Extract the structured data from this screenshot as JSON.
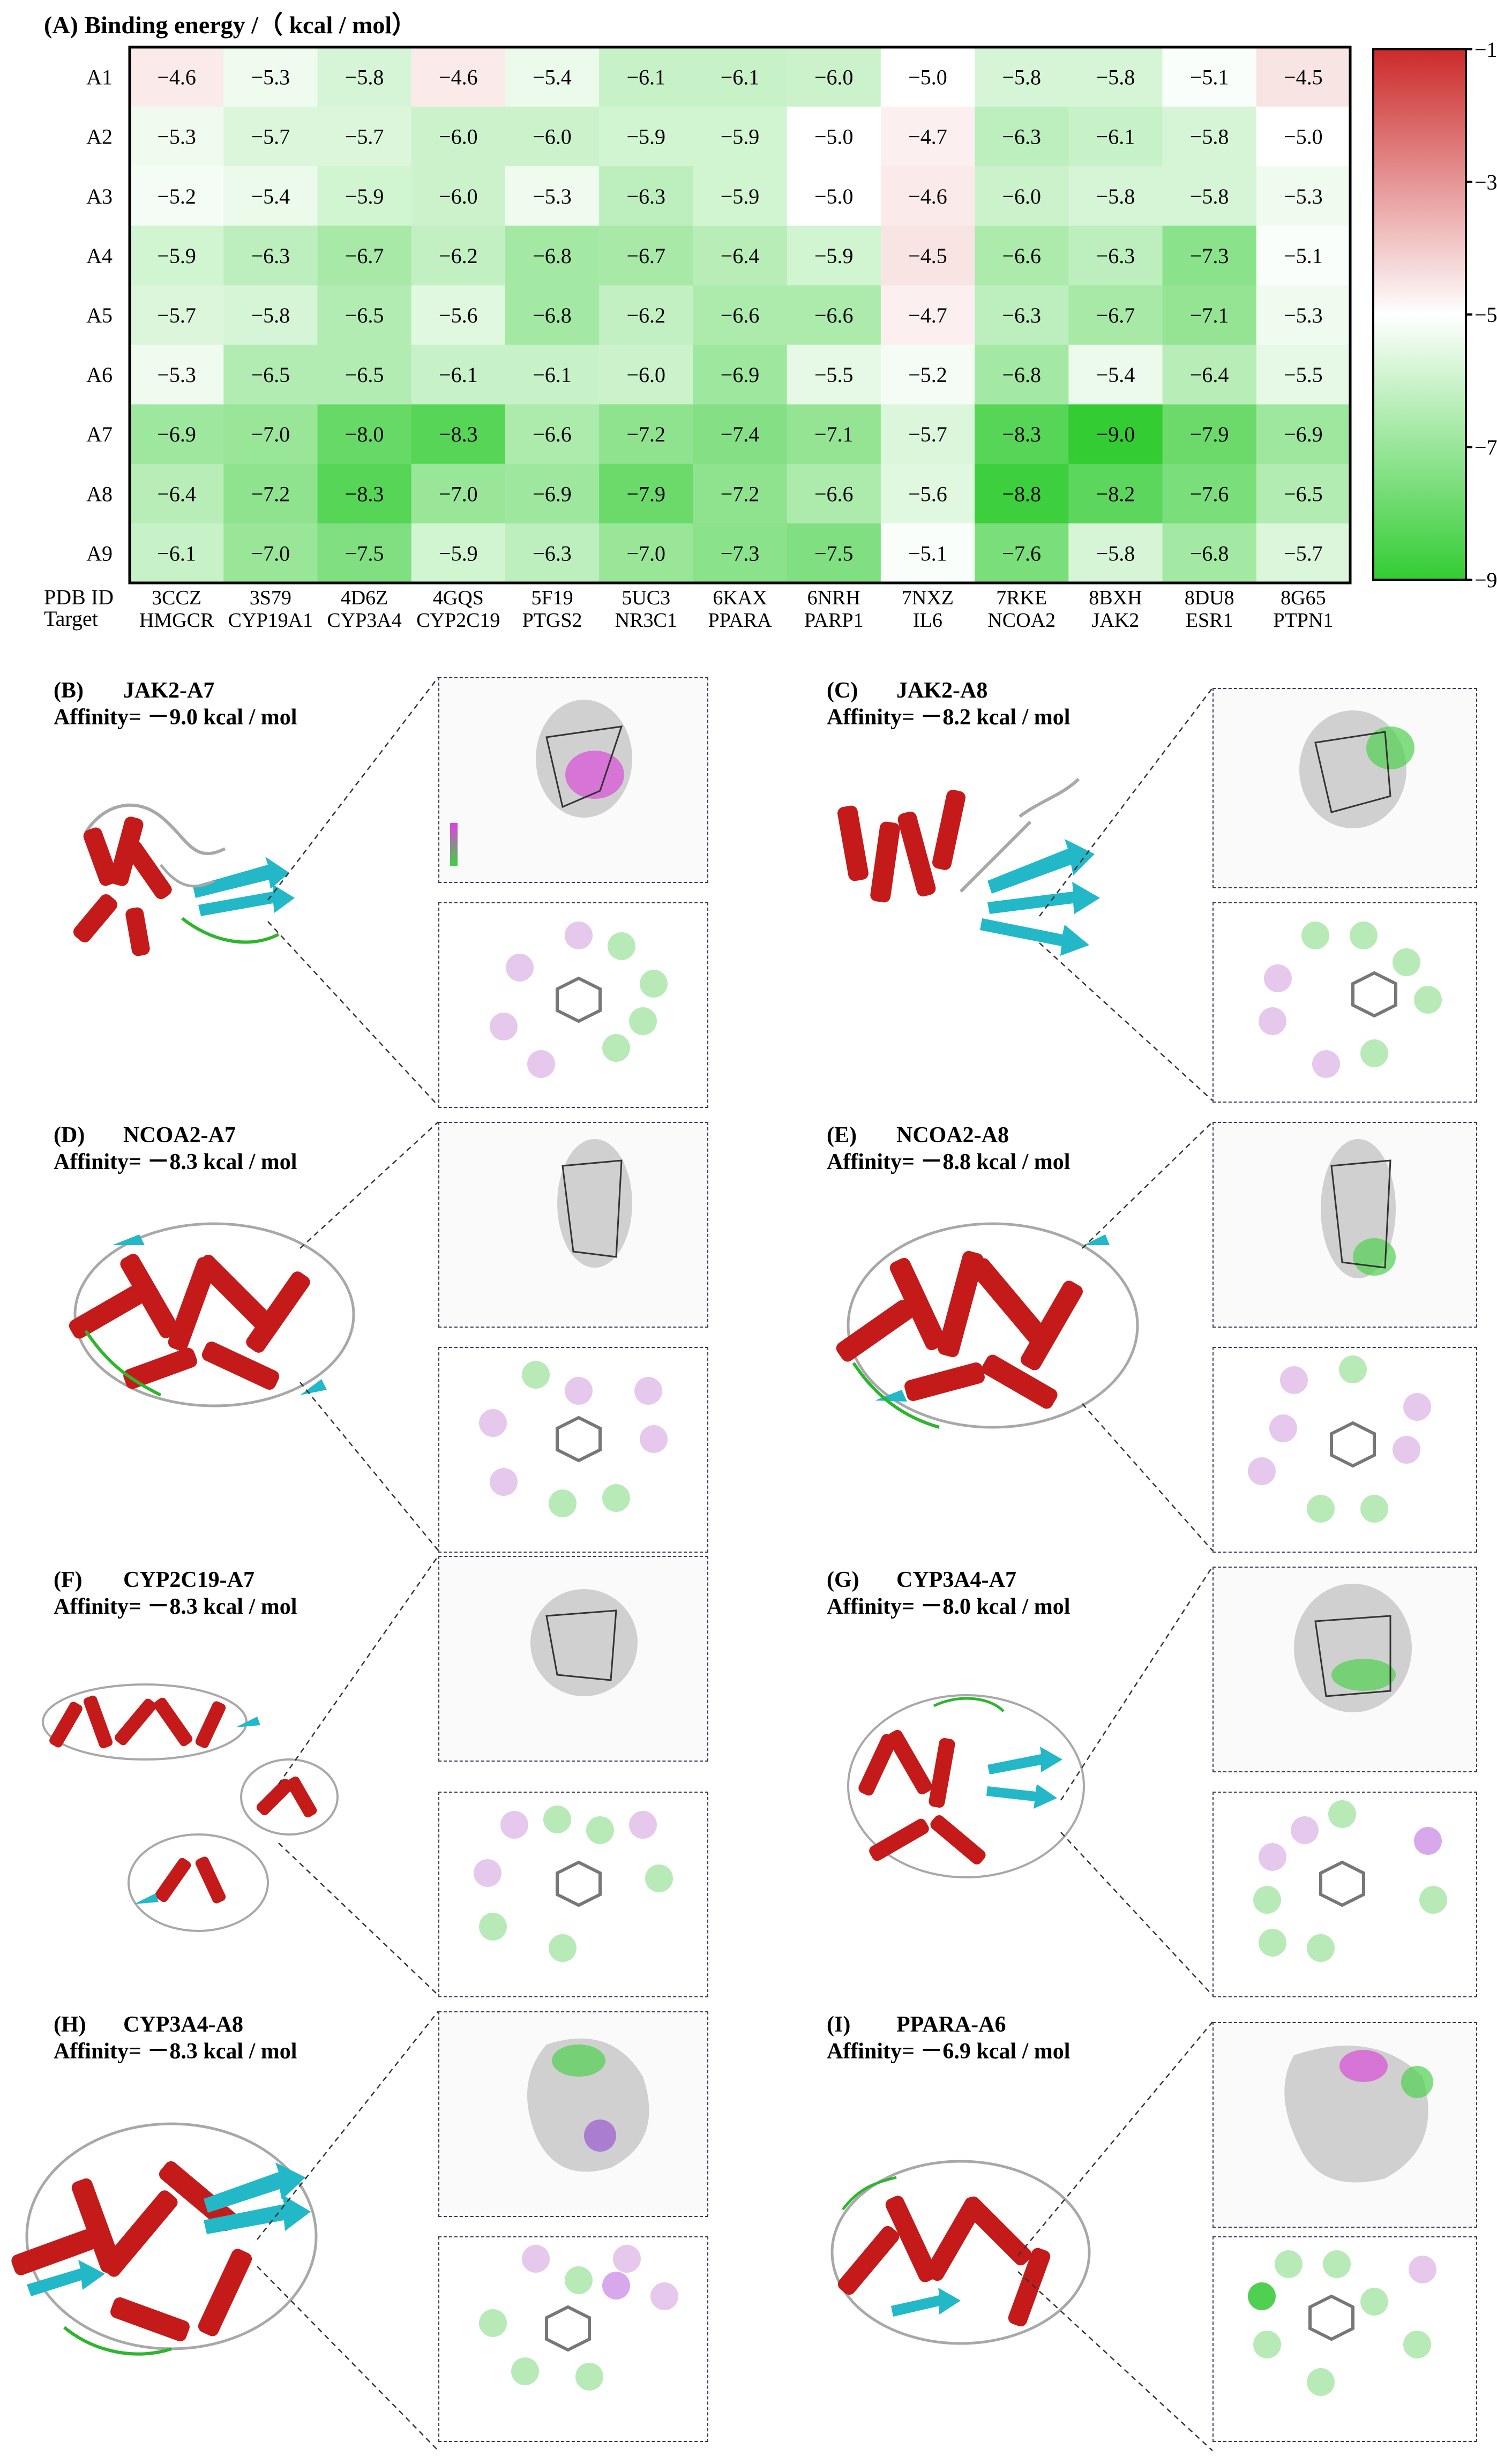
{
  "heatmap": {
    "title": "(A) Binding energy /（ kcal / mol）",
    "pdb_label": "PDB ID",
    "target_label": "Target",
    "colorbar_ticks": [
      "−1",
      "−3",
      "−5",
      "−7",
      "−9"
    ]
  },
  "chart_data": {
    "type": "heatmap",
    "title": "(A) Binding energy /（ kcal / mol）",
    "rows": [
      "A1",
      "A2",
      "A3",
      "A4",
      "A5",
      "A6",
      "A7",
      "A8",
      "A9"
    ],
    "pdb_ids": [
      "3CCZ",
      "3S79",
      "4D6Z",
      "4GQS",
      "5F19",
      "5UC3",
      "6KAX",
      "6NRH",
      "7NXZ",
      "7RKE",
      "8BXH",
      "8DU8",
      "8G65"
    ],
    "targets": [
      "HMGCR",
      "CYP19A1",
      "CYP3A4",
      "CYP2C19",
      "PTGS2",
      "NR3C1",
      "PPARA",
      "PARP1",
      "IL6",
      "NCOA2",
      "JAK2",
      "ESR1",
      "PTPN1"
    ],
    "values": [
      [
        -4.6,
        -5.3,
        -5.8,
        -4.6,
        -5.4,
        -6.1,
        -6.1,
        -6.0,
        -5.0,
        -5.8,
        -5.8,
        -5.1,
        -4.5
      ],
      [
        -5.3,
        -5.7,
        -5.7,
        -6.0,
        -6.0,
        -5.9,
        -5.9,
        -5.0,
        -4.7,
        -6.3,
        -6.1,
        -5.8,
        -5.0
      ],
      [
        -5.2,
        -5.4,
        -5.9,
        -6.0,
        -5.3,
        -6.3,
        -5.9,
        -5.0,
        -4.6,
        -6.0,
        -5.8,
        -5.8,
        -5.3
      ],
      [
        -5.9,
        -6.3,
        -6.7,
        -6.2,
        -6.8,
        -6.7,
        -6.4,
        -5.9,
        -4.5,
        -6.6,
        -6.3,
        -7.3,
        -5.1
      ],
      [
        -5.7,
        -5.8,
        -6.5,
        -5.6,
        -6.8,
        -6.2,
        -6.6,
        -6.6,
        -4.7,
        -6.3,
        -6.7,
        -7.1,
        -5.3
      ],
      [
        -5.3,
        -6.5,
        -6.5,
        -6.1,
        -6.1,
        -6.0,
        -6.9,
        -5.5,
        -5.2,
        -6.8,
        -5.4,
        -6.4,
        -5.5
      ],
      [
        -6.9,
        -7.0,
        -8.0,
        -8.3,
        -6.6,
        -7.2,
        -7.4,
        -7.1,
        -5.7,
        -8.3,
        -9.0,
        -7.9,
        -6.9
      ],
      [
        -6.4,
        -7.2,
        -8.3,
        -7.0,
        -6.9,
        -7.9,
        -7.2,
        -6.6,
        -5.6,
        -8.8,
        -8.2,
        -7.6,
        -6.5
      ],
      [
        -6.1,
        -7.0,
        -7.5,
        -5.9,
        -6.3,
        -7.0,
        -7.3,
        -7.5,
        -5.1,
        -7.6,
        -5.8,
        -6.8,
        -5.7
      ]
    ],
    "color_range": [
      -9,
      -1
    ],
    "colorscale": {
      "low": "#33cc33",
      "mid": "#ffffff",
      "high": "#cc2a2a",
      "mid_value": -5
    }
  },
  "panels": [
    {
      "tag": "(B)",
      "complex": "JAK2-A7",
      "affinity": "Affinity= －9.0 kcal / mol"
    },
    {
      "tag": "(C)",
      "complex": "JAK2-A8",
      "affinity": "Affinity= －8.2 kcal / mol"
    },
    {
      "tag": "(D)",
      "complex": "NCOA2-A7",
      "affinity": "Affinity= －8.3 kcal / mol"
    },
    {
      "tag": "(E)",
      "complex": "NCOA2-A8",
      "affinity": "Affinity= －8.8 kcal / mol"
    },
    {
      "tag": "(F)",
      "complex": "CYP2C19-A7",
      "affinity": "Affinity= －8.3 kcal / mol"
    },
    {
      "tag": "(G)",
      "complex": "CYP3A4-A7",
      "affinity": "Affinity= －8.0 kcal / mol"
    },
    {
      "tag": "(H)",
      "complex": "CYP3A4-A8",
      "affinity": "Affinity= －8.3 kcal / mol"
    },
    {
      "tag": "(I)",
      "complex": "PPARA-A6",
      "affinity": "Affinity= －6.9 kcal / mol"
    }
  ],
  "colors": {
    "helix": "#c41a1a",
    "sheet": "#22b8c8",
    "coil": "#a8a8a8",
    "turn": "#2db52d",
    "frame": "#3a3a5a"
  }
}
